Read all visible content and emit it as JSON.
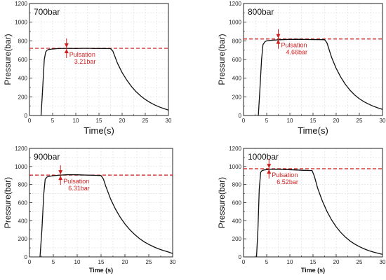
{
  "colors": {
    "curve": "#111111",
    "reference": "#d21f1f",
    "annotation": "#d21f1f",
    "grid": "#dcdcdc"
  },
  "chart_data": [
    {
      "type": "line",
      "title": "700bar",
      "xlabel": "Time(s)",
      "ylabel": "Pressure(bar)",
      "xlim": [
        0,
        30
      ],
      "ylim": [
        0,
        1200
      ],
      "xticks": [
        "0",
        "5",
        "10",
        "15",
        "20",
        "25",
        "30"
      ],
      "yticks": [
        "0",
        "200",
        "400",
        "600",
        "800",
        "1000",
        "1200"
      ],
      "grid": true,
      "reference_line": 720,
      "annotation": {
        "label": "Pulsation",
        "value": "3.21bar",
        "x": 8
      },
      "series": [
        {
          "x": [
            2.5,
            2.8,
            3.2,
            3.5,
            3.8,
            4.2,
            4.8,
            6,
            8,
            10,
            12,
            14,
            16,
            17.5,
            18,
            19,
            20,
            21,
            22,
            23,
            24,
            25,
            26,
            27,
            28,
            29,
            30
          ],
          "y": [
            0,
            250,
            600,
            680,
            700,
            708,
            712,
            716,
            719,
            718,
            720,
            718,
            718,
            716,
            690,
            560,
            460,
            380,
            312,
            256,
            210,
            172,
            140,
            114,
            92,
            74,
            58
          ]
        }
      ]
    },
    {
      "type": "line",
      "title": "800bar",
      "xlabel": "Time(s)",
      "ylabel": "Pressure(bar)",
      "xlim": [
        0,
        30
      ],
      "ylim": [
        0,
        1200
      ],
      "xticks": [
        "0",
        "5",
        "10",
        "15",
        "20",
        "25",
        "30"
      ],
      "yticks": [
        "0",
        "200",
        "400",
        "600",
        "800",
        "1000",
        "1200"
      ],
      "grid": true,
      "reference_line": 820,
      "annotation": {
        "label": "Pulsation",
        "value": "4.66bar",
        "x": 7.5
      },
      "series": [
        {
          "x": [
            3.2,
            3.5,
            3.9,
            4.2,
            4.6,
            5,
            6,
            8,
            10,
            12,
            14,
            16,
            17.5,
            18,
            19,
            20,
            21,
            22,
            23,
            24,
            25,
            26,
            27,
            28,
            29,
            30
          ],
          "y": [
            0,
            250,
            600,
            760,
            790,
            800,
            806,
            812,
            815,
            816,
            814,
            813,
            812,
            780,
            625,
            505,
            410,
            333,
            270,
            220,
            180,
            148,
            122,
            100,
            82,
            66
          ]
        }
      ]
    },
    {
      "type": "line",
      "title": "900bar",
      "xlabel": "Time (s)",
      "ylabel": "Pressure(bar)",
      "xlim": [
        0,
        30
      ],
      "ylim": [
        0,
        1200
      ],
      "xticks": [
        "0",
        "5",
        "10",
        "15",
        "20",
        "25",
        "30"
      ],
      "yticks": [
        "0",
        "200",
        "400",
        "600",
        "800",
        "1000",
        "1200"
      ],
      "grid": true,
      "reference_line": 905,
      "annotation": {
        "label": "Pulsation",
        "value": "6.31bar",
        "x": 6.5
      },
      "series": [
        {
          "x": [
            2.2,
            2.6,
            3,
            3.3,
            3.7,
            4.2,
            5,
            6.5,
            8,
            10,
            12,
            14,
            15,
            15.5,
            16,
            17,
            18,
            19,
            20,
            21,
            22,
            23,
            24,
            25,
            26,
            27,
            28,
            29,
            30
          ],
          "y": [
            0,
            300,
            700,
            860,
            885,
            892,
            898,
            905,
            910,
            908,
            905,
            902,
            900,
            860,
            780,
            640,
            530,
            440,
            365,
            302,
            250,
            205,
            168,
            138,
            112,
            90,
            72,
            56,
            38
          ]
        }
      ]
    },
    {
      "type": "line",
      "title": "1000bar",
      "xlabel": "Time (s)",
      "ylabel": "Pressure(bar)",
      "xlim": [
        0,
        30
      ],
      "ylim": [
        0,
        1200
      ],
      "xticks": [
        "0",
        "5",
        "10",
        "15",
        "20",
        "25",
        "30"
      ],
      "yticks": [
        "0",
        "200",
        "400",
        "600",
        "800",
        "1000",
        "1200"
      ],
      "grid": true,
      "reference_line": 975,
      "annotation": {
        "label": "Pulsation",
        "value": "6.52bar",
        "x": 5.5
      },
      "series": [
        {
          "x": [
            2.8,
            3.1,
            3.4,
            3.7,
            4,
            4.5,
            5.5,
            7,
            9,
            11,
            13,
            14.8,
            15.3,
            16,
            17,
            18,
            19,
            20,
            21,
            22,
            23,
            24,
            25,
            26,
            27,
            28,
            29,
            30
          ],
          "y": [
            0,
            300,
            750,
            935,
            955,
            962,
            968,
            970,
            966,
            962,
            958,
            955,
            890,
            760,
            620,
            505,
            410,
            333,
            270,
            218,
            176,
            142,
            114,
            90,
            70,
            54,
            40,
            28
          ]
        }
      ]
    }
  ]
}
